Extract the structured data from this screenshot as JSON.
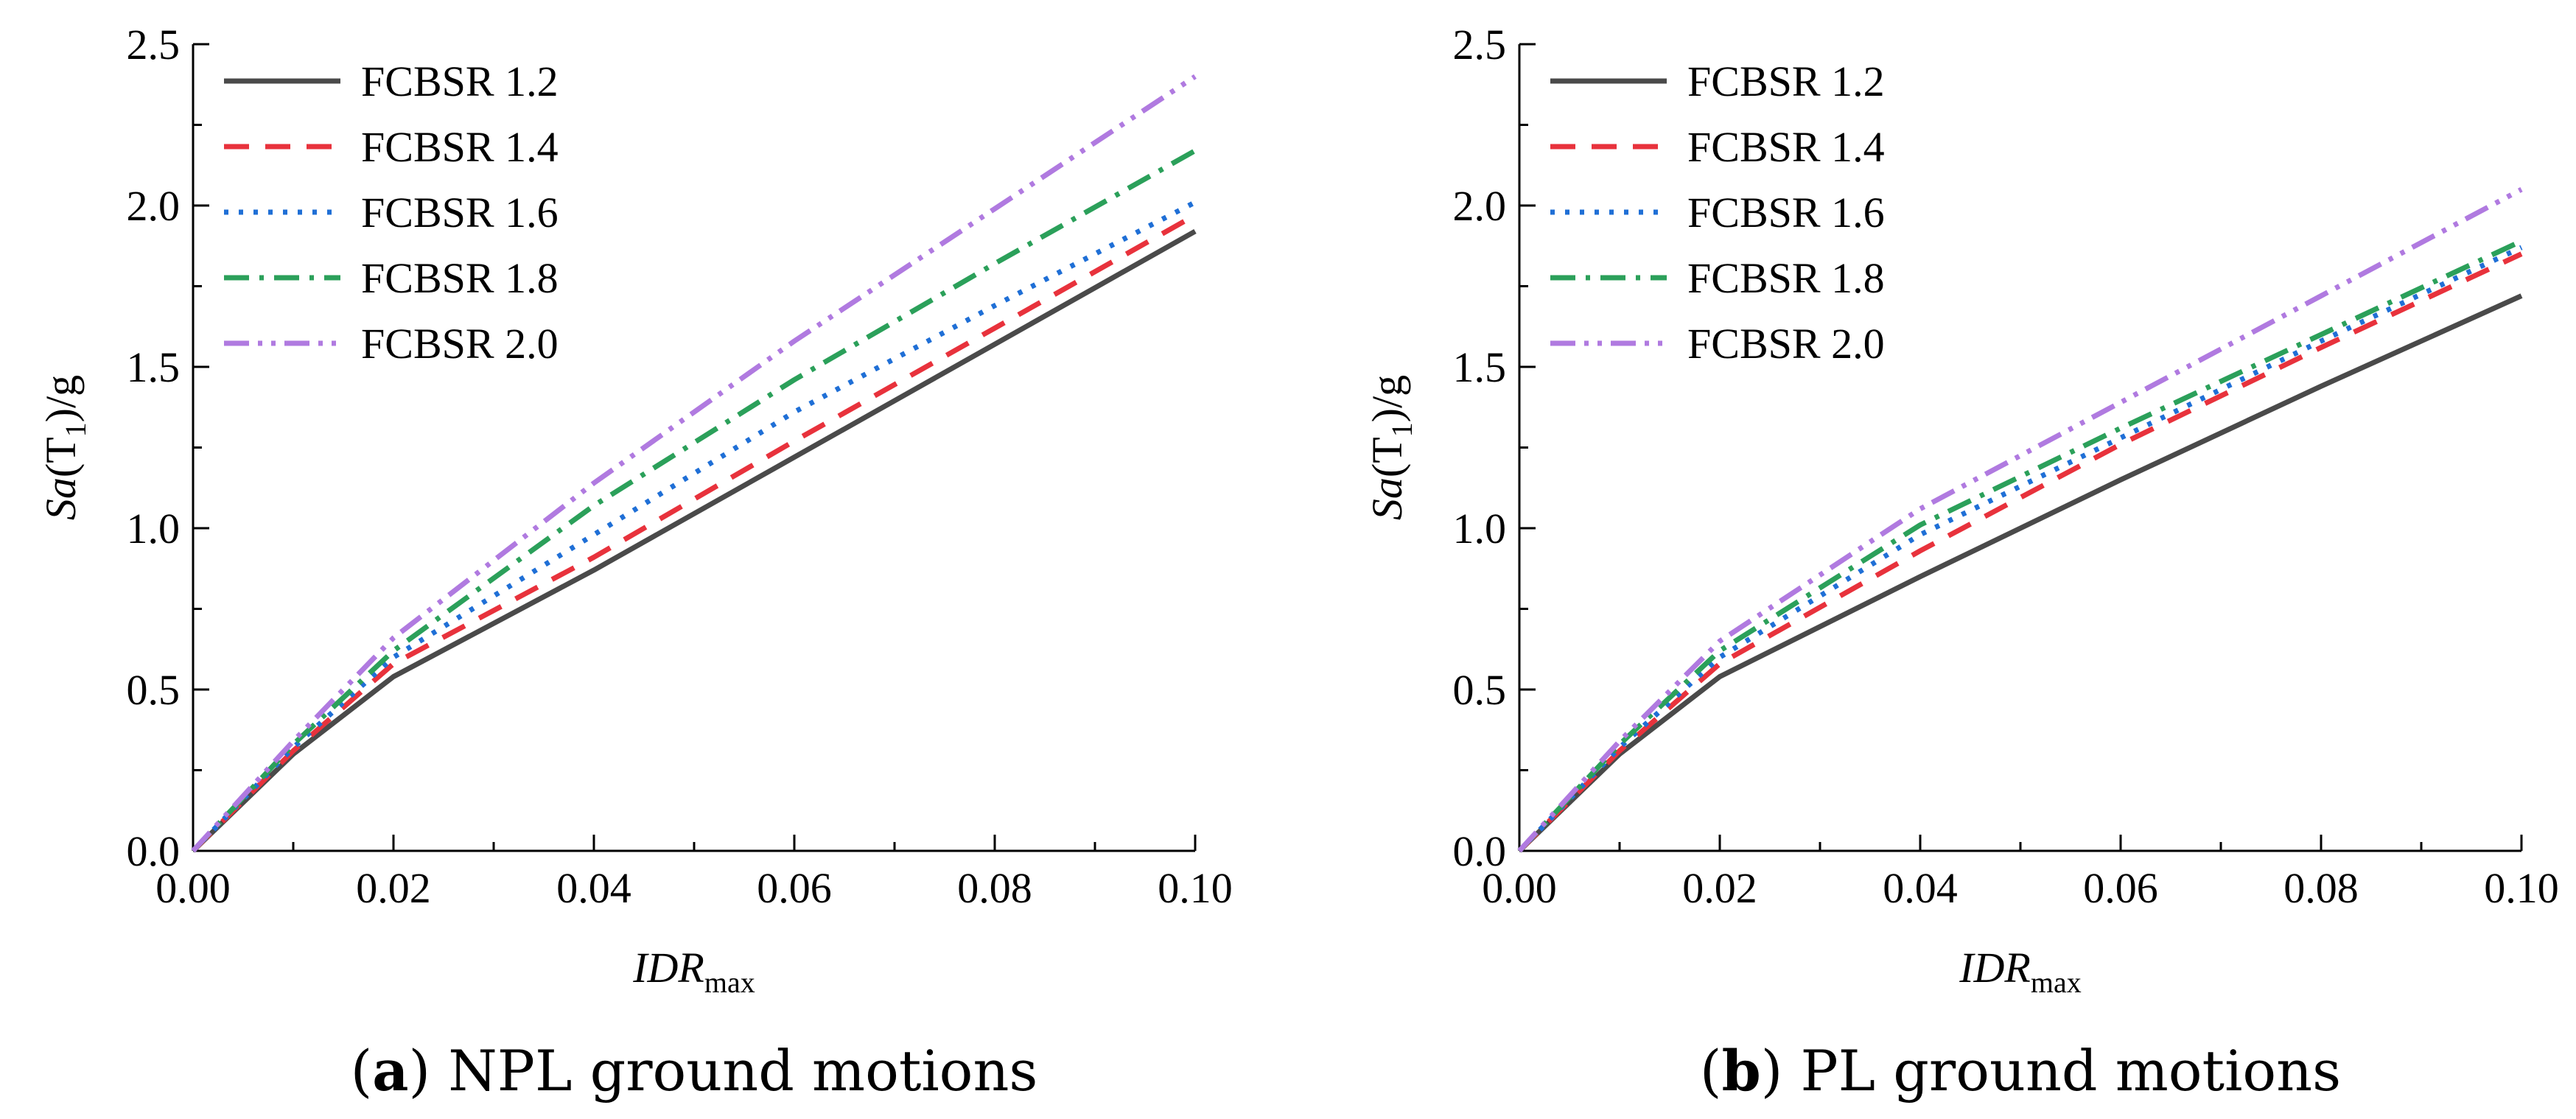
{
  "chart_data": [
    {
      "type": "line",
      "panel": "a",
      "caption_letter": "a",
      "caption_text": " NPL ground motions",
      "xlabel_main": "IDR",
      "xlabel_sub": "max",
      "ylabel_main": "Sa",
      "ylabel_rest_open": "(T",
      "ylabel_sub": "1",
      "ylabel_rest_close": ")/g",
      "xlim": [
        0,
        0.1
      ],
      "ylim": [
        0,
        2.5
      ],
      "x_ticks": [
        "0.00",
        "0.02",
        "0.04",
        "0.06",
        "0.08",
        "0.10"
      ],
      "y_ticks": [
        "0.0",
        "0.5",
        "1.0",
        "1.5",
        "2.0",
        "2.5"
      ],
      "legend_position": "top-left",
      "series": [
        {
          "name": "FCBSR 1.2",
          "color": "#4a4a4a",
          "style": "solid",
          "x": [
            0,
            0.01,
            0.02,
            0.04,
            0.06,
            0.08,
            0.1
          ],
          "y": [
            0,
            0.3,
            0.54,
            0.87,
            1.22,
            1.57,
            1.92
          ]
        },
        {
          "name": "FCBSR 1.4",
          "color": "#e8323c",
          "style": "dash",
          "x": [
            0,
            0.01,
            0.02,
            0.04,
            0.06,
            0.08,
            0.1
          ],
          "y": [
            0,
            0.31,
            0.58,
            0.91,
            1.27,
            1.62,
            1.97
          ]
        },
        {
          "name": "FCBSR 1.6",
          "color": "#1f6fd6",
          "style": "dot",
          "x": [
            0,
            0.01,
            0.02,
            0.04,
            0.06,
            0.08,
            0.1
          ],
          "y": [
            0,
            0.32,
            0.6,
            0.98,
            1.36,
            1.69,
            2.01
          ]
        },
        {
          "name": "FCBSR 1.8",
          "color": "#2ba05a",
          "style": "dashdot",
          "x": [
            0,
            0.01,
            0.02,
            0.04,
            0.06,
            0.08,
            0.1
          ],
          "y": [
            0,
            0.33,
            0.62,
            1.07,
            1.46,
            1.82,
            2.17
          ]
        },
        {
          "name": "FCBSR 2.0",
          "color": "#b07ae0",
          "style": "dashdotdot",
          "x": [
            0,
            0.01,
            0.02,
            0.04,
            0.06,
            0.08,
            0.1
          ],
          "y": [
            0,
            0.34,
            0.66,
            1.14,
            1.58,
            1.99,
            2.4
          ]
        }
      ]
    },
    {
      "type": "line",
      "panel": "b",
      "caption_letter": "b",
      "caption_text": " PL ground motions",
      "xlabel_main": "IDR",
      "xlabel_sub": "max",
      "ylabel_main": "Sa",
      "ylabel_rest_open": "(T",
      "ylabel_sub": "1",
      "ylabel_rest_close": ")/g",
      "xlim": [
        0,
        0.1
      ],
      "ylim": [
        0,
        2.5
      ],
      "x_ticks": [
        "0.00",
        "0.02",
        "0.04",
        "0.06",
        "0.08",
        "0.10"
      ],
      "y_ticks": [
        "0.0",
        "0.5",
        "1.0",
        "1.5",
        "2.0",
        "2.5"
      ],
      "legend_position": "top-left",
      "series": [
        {
          "name": "FCBSR 1.2",
          "color": "#4a4a4a",
          "style": "solid",
          "x": [
            0,
            0.01,
            0.02,
            0.04,
            0.06,
            0.08,
            0.1
          ],
          "y": [
            0,
            0.3,
            0.54,
            0.85,
            1.15,
            1.44,
            1.72
          ]
        },
        {
          "name": "FCBSR 1.4",
          "color": "#e8323c",
          "style": "dash",
          "x": [
            0,
            0.01,
            0.02,
            0.04,
            0.06,
            0.08,
            0.1
          ],
          "y": [
            0,
            0.31,
            0.58,
            0.93,
            1.26,
            1.56,
            1.85
          ]
        },
        {
          "name": "FCBSR 1.6",
          "color": "#1f6fd6",
          "style": "dot",
          "x": [
            0,
            0.01,
            0.02,
            0.04,
            0.06,
            0.08,
            0.1
          ],
          "y": [
            0,
            0.32,
            0.6,
            0.98,
            1.28,
            1.58,
            1.87
          ]
        },
        {
          "name": "FCBSR 1.8",
          "color": "#2ba05a",
          "style": "dashdot",
          "x": [
            0,
            0.01,
            0.02,
            0.04,
            0.06,
            0.08,
            0.1
          ],
          "y": [
            0,
            0.33,
            0.62,
            1.01,
            1.31,
            1.6,
            1.89
          ]
        },
        {
          "name": "FCBSR 2.0",
          "color": "#b07ae0",
          "style": "dashdotdot",
          "x": [
            0,
            0.01,
            0.02,
            0.04,
            0.06,
            0.08,
            0.1
          ],
          "y": [
            0,
            0.34,
            0.65,
            1.06,
            1.39,
            1.72,
            2.05
          ]
        }
      ]
    }
  ]
}
